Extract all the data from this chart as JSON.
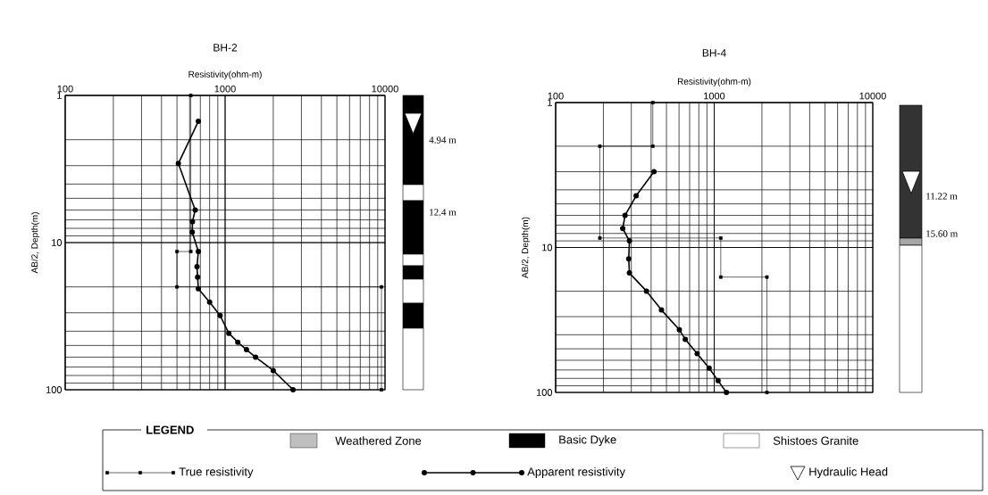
{
  "chart_data": [
    {
      "type": "line",
      "title": "BH-2",
      "xlabel": "Resistivity(ohm-m)",
      "ylabel": "AB/2, Depth(m)",
      "log": "xy",
      "xlim": [
        100,
        10000
      ],
      "ylim": [
        100,
        1
      ],
      "xticks": [
        100,
        1000,
        10000
      ],
      "yticks": [
        1,
        10,
        100
      ],
      "grid": true,
      "legend": "bottom",
      "annotations": [
        "4.94 m",
        "12.4 m"
      ],
      "series": [
        {
          "name": "True resistivity",
          "color": "#000000",
          "marker": "square",
          "x": [
            610,
            610,
            500,
            500,
            9500,
            9500
          ],
          "values": [
            1,
            11.5,
            11.5,
            20,
            20,
            100
          ]
        },
        {
          "name": "Apparent resistivity",
          "color": "#000000",
          "marker": "circle",
          "x": [
            680,
            510,
            650,
            625,
            623,
            680,
            667,
            673,
            680,
            800,
            930,
            1055,
            1200,
            1360,
            1550,
            2000,
            2660
          ],
          "values": [
            1.5,
            2.9,
            6,
            7.2,
            8.5,
            11.5,
            14.6,
            17.2,
            20.6,
            25.4,
            31.3,
            41.3,
            47.5,
            53.4,
            60,
            74,
            100
          ]
        }
      ]
    },
    {
      "type": "line",
      "title": "BH-4",
      "xlabel": "Resistivity(ohm-m)",
      "ylabel": "AB/2, Depth(m)",
      "log": "xy",
      "xlim": [
        100,
        10000
      ],
      "ylim": [
        100,
        1
      ],
      "xticks": [
        100,
        1000,
        10000
      ],
      "yticks": [
        1,
        10,
        100
      ],
      "grid": true,
      "annotations": [
        "11.22 m",
        "15.60 m"
      ],
      "series": [
        {
          "color": "#000000",
          "marker": "square",
          "x": [
            410,
            410,
            190,
            190,
            1100,
            1100,
            2150,
            2150
          ],
          "values": [
            1,
            2,
            2,
            8.6,
            8.6,
            16,
            16,
            100
          ]
        },
        {
          "color": "#000000",
          "marker": "circle",
          "x": [
            417,
            322,
            274,
            265,
            292,
            289,
            292,
            374,
            465,
            603,
            657,
            781,
            929,
            1058,
            1194
          ],
          "values": [
            3,
            4.4,
            6,
            7.4,
            9,
            12,
            15,
            20,
            27,
            37,
            43,
            54,
            68,
            83,
            100
          ]
        }
      ]
    },
    {
      "type": "other",
      "title": "LEGEND",
      "annotations": [
        "Weathered Zone",
        "Basic Dyke",
        "Shistoes Granite",
        "Hydraulic Head"
      ]
    }
  ]
}
